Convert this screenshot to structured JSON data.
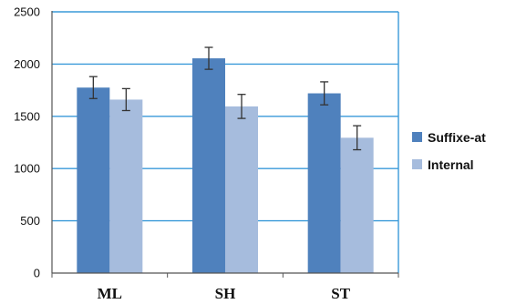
{
  "chart_data": {
    "type": "bar",
    "categories": [
      "ML",
      "SH",
      "ST"
    ],
    "series": [
      {
        "name": "Suffixe-at",
        "values": [
          1775,
          2055,
          1720
        ],
        "errors": [
          105,
          105,
          110
        ],
        "color": "#4f81bd"
      },
      {
        "name": "Internal",
        "values": [
          1660,
          1595,
          1295
        ],
        "errors": [
          105,
          115,
          115
        ],
        "color": "#a6bcdd"
      }
    ],
    "ylim": [
      0,
      2500
    ],
    "yticks": [
      "0",
      "500",
      "1000",
      "1500",
      "2000",
      "2500"
    ],
    "gridline_color": "#3a9ad9",
    "grid": true,
    "legend_position": "right",
    "title": "",
    "xlabel": "",
    "ylabel": ""
  }
}
